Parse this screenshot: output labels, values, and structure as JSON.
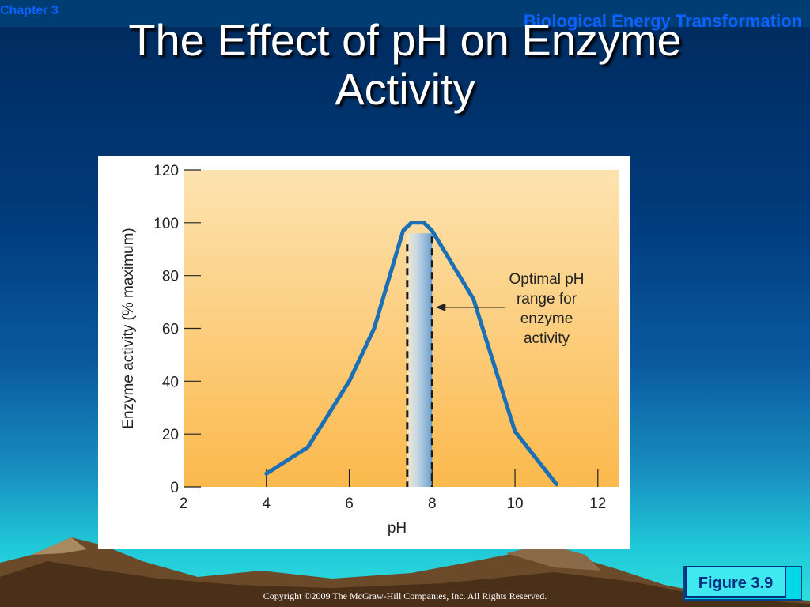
{
  "header": {
    "chapter": "Chapter 3",
    "section": "Biological Energy Transformation"
  },
  "title": {
    "line1": "The Effect of pH on Enzyme",
    "line2": "Activity"
  },
  "figure_label": "Figure 3.9",
  "copyright": "Copyright ©2009 The McGraw-Hill Companies, Inc. All Rights Reserved.",
  "colors": {
    "curve": "#1a6fb5",
    "plot_bg_top": "#fde3b0",
    "plot_bg_bottom": "#fbb94d",
    "band_dark": "#6a9fcc"
  },
  "chart_data": {
    "type": "line",
    "xlabel": "pH",
    "ylabel": "Enzyme activity (% maximum)",
    "xlim": [
      2,
      12.5
    ],
    "ylim": [
      0,
      120
    ],
    "x_ticks": [
      2,
      4,
      6,
      8,
      10,
      12
    ],
    "y_ticks": [
      0,
      20,
      40,
      60,
      80,
      100,
      120
    ],
    "grid": false,
    "series": [
      {
        "x": [
          4.0,
          5.0,
          6.0,
          6.6,
          7.3,
          7.5,
          7.8,
          8.0,
          9.0,
          10.0,
          11.0
        ],
        "y": [
          5,
          15,
          40,
          60,
          97,
          100,
          100,
          97,
          71,
          21,
          1
        ]
      }
    ],
    "optimal_range": [
      7.4,
      8.0
    ],
    "annotation": {
      "lines": [
        "Optimal pH",
        "range for",
        "enzyme",
        "activity"
      ],
      "arrow_target": [
        8.0,
        68
      ]
    }
  }
}
